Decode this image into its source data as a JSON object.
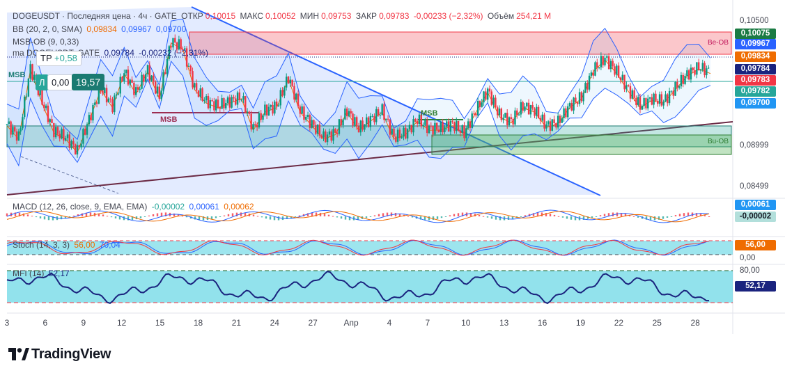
{
  "header": {
    "symbol": "DOGEUSDT",
    "symbol_sep": "· Последняя цена · 4ч · GATE",
    "open_label": "ОТКР",
    "open": "0,10015",
    "high_label": "МАКС",
    "high": "0,10052",
    "low_label": "МИН",
    "low": "0,09753",
    "close_label": "ЗАКР",
    "close": "0,09783",
    "change": "-0,00233 (−2,32%)",
    "volume_label": "Объём",
    "volume": "254,21 M"
  },
  "indicators": {
    "bb_name": "BB (20, 2, 0, SMA)",
    "bb_mid": "0,09834",
    "bb_upper": "0,09967",
    "bb_lower": "0,09700",
    "msb_name": "MSB-OB (9, 0,33)",
    "ma_name": "ma DOGEUSDT, GATE",
    "ma_val": "0,09784",
    "ma_change": "-0,00232 (−2,31%)",
    "macd_name": "MACD (12, 26, close, 9, EMA, EMA)",
    "macd_hist": "-0,00002",
    "macd_line": "0,00061",
    "macd_signal": "0,00062",
    "stoch_name": "Stoch (14, 3, 3)",
    "stoch_k": "56,00",
    "stoch_d": "70,04",
    "mfi_name": "MFI (14)",
    "mfi_val": "52,17"
  },
  "controls": {
    "tp_label": "TP",
    "tp_val": "+0,58",
    "l_label": "Л",
    "l_val": "0,00",
    "r_val": "19,57"
  },
  "annotations": {
    "msb_left": "MSB",
    "msb_mid": "MSB",
    "msb_right": "MSB",
    "be_ob": "Be-OB",
    "bu_ob": "Bu-OB"
  },
  "price_scale": {
    "ticks": [
      "0,10500",
      "0,08999",
      "0,08499"
    ],
    "pills": [
      {
        "value": "0,10075",
        "color": "#1b7b44"
      },
      {
        "value": "0,09967",
        "color": "#2962ff"
      },
      {
        "value": "0,09834",
        "color": "#ef6c00"
      },
      {
        "value": "0,09784",
        "color": "#1a237e"
      },
      {
        "value": "0,09783",
        "color": "#f23645"
      },
      {
        "value": "0,09782",
        "color": "#26a69a"
      },
      {
        "value": "0,09700",
        "color": "#2196f3"
      }
    ],
    "macd_pills": [
      {
        "value": "0,00061",
        "color": "#2196f3"
      },
      {
        "value": "-0,00002",
        "color": "#b2dfdb"
      }
    ],
    "stoch_ticks": [
      "0,00"
    ],
    "stoch_pills": [
      {
        "value": "56,00",
        "color": "#ef6c00"
      }
    ],
    "mfi_ticks": [
      "80,00"
    ],
    "mfi_pills": [
      {
        "value": "52,17",
        "color": "#1a237e"
      }
    ]
  },
  "x_axis": [
    "3",
    "6",
    "9",
    "12",
    "15",
    "18",
    "21",
    "24",
    "27",
    "Апр",
    "4",
    "7",
    "10",
    "13",
    "16",
    "19",
    "22",
    "25",
    "28"
  ],
  "brand": {
    "name": "TradingView"
  },
  "chart_data": {
    "type": "candlestick",
    "symbol": "DOGEUSDT",
    "timeframe": "4ч",
    "x_ticks": [
      "3",
      "6",
      "9",
      "12",
      "15",
      "18",
      "21",
      "24",
      "27",
      "Апр",
      "4",
      "7",
      "10",
      "13",
      "16",
      "19",
      "22",
      "25",
      "28"
    ],
    "approx_close_path": [
      [
        0,
        0.092
      ],
      [
        6,
        0.0905
      ],
      [
        12,
        0.0982
      ],
      [
        18,
        0.0945
      ],
      [
        24,
        0.0912
      ],
      [
        30,
        0.0905
      ],
      [
        36,
        0.089
      ],
      [
        42,
        0.0925
      ],
      [
        48,
        0.096
      ],
      [
        54,
        0.094
      ],
      [
        60,
        0.0978
      ],
      [
        66,
        0.0955
      ],
      [
        72,
        0.098
      ],
      [
        78,
        0.095
      ],
      [
        84,
        0.1012
      ],
      [
        90,
        0.1005
      ],
      [
        96,
        0.096
      ],
      [
        102,
        0.0945
      ],
      [
        108,
        0.094
      ],
      [
        114,
        0.0945
      ],
      [
        120,
        0.095
      ],
      [
        126,
        0.0915
      ],
      [
        132,
        0.0935
      ],
      [
        138,
        0.094
      ],
      [
        144,
        0.0972
      ],
      [
        150,
        0.0935
      ],
      [
        156,
        0.092
      ],
      [
        162,
        0.0905
      ],
      [
        168,
        0.091
      ],
      [
        174,
        0.0935
      ],
      [
        180,
        0.0915
      ],
      [
        186,
        0.0925
      ],
      [
        192,
        0.0935
      ],
      [
        198,
        0.0905
      ],
      [
        204,
        0.091
      ],
      [
        210,
        0.0925
      ],
      [
        216,
        0.0915
      ],
      [
        222,
        0.0915
      ],
      [
        228,
        0.092
      ],
      [
        234,
        0.091
      ],
      [
        240,
        0.0935
      ],
      [
        246,
        0.0957
      ],
      [
        252,
        0.093
      ],
      [
        258,
        0.0923
      ],
      [
        264,
        0.094
      ],
      [
        270,
        0.0935
      ],
      [
        276,
        0.0918
      ],
      [
        282,
        0.0922
      ],
      [
        288,
        0.094
      ],
      [
        294,
        0.095
      ],
      [
        300,
        0.098
      ],
      [
        306,
        0.0993
      ],
      [
        312,
        0.0978
      ],
      [
        318,
        0.0958
      ],
      [
        324,
        0.094
      ],
      [
        330,
        0.0948
      ],
      [
        336,
        0.0945
      ],
      [
        342,
        0.096
      ],
      [
        348,
        0.0975
      ],
      [
        354,
        0.0983
      ],
      [
        360,
        0.0978
      ]
    ],
    "bollinger": {
      "upper": 0.09967,
      "middle": 0.09834,
      "lower": 0.097
    },
    "ma": 0.09784,
    "zones": [
      {
        "name": "Be-OB",
        "price_top": 0.10075,
        "price_bottom": 0.1
      },
      {
        "name": "Bu-OB",
        "price_top": 0.093,
        "price_bottom": 0.09
      }
    ],
    "macd": {
      "line": 0.00061,
      "signal": 0.00062,
      "hist": -2e-05
    },
    "stoch": {
      "k": 56.0,
      "d": 70.04
    },
    "mfi": {
      "value": 52.17,
      "upper": 80,
      "lower": 20
    }
  }
}
